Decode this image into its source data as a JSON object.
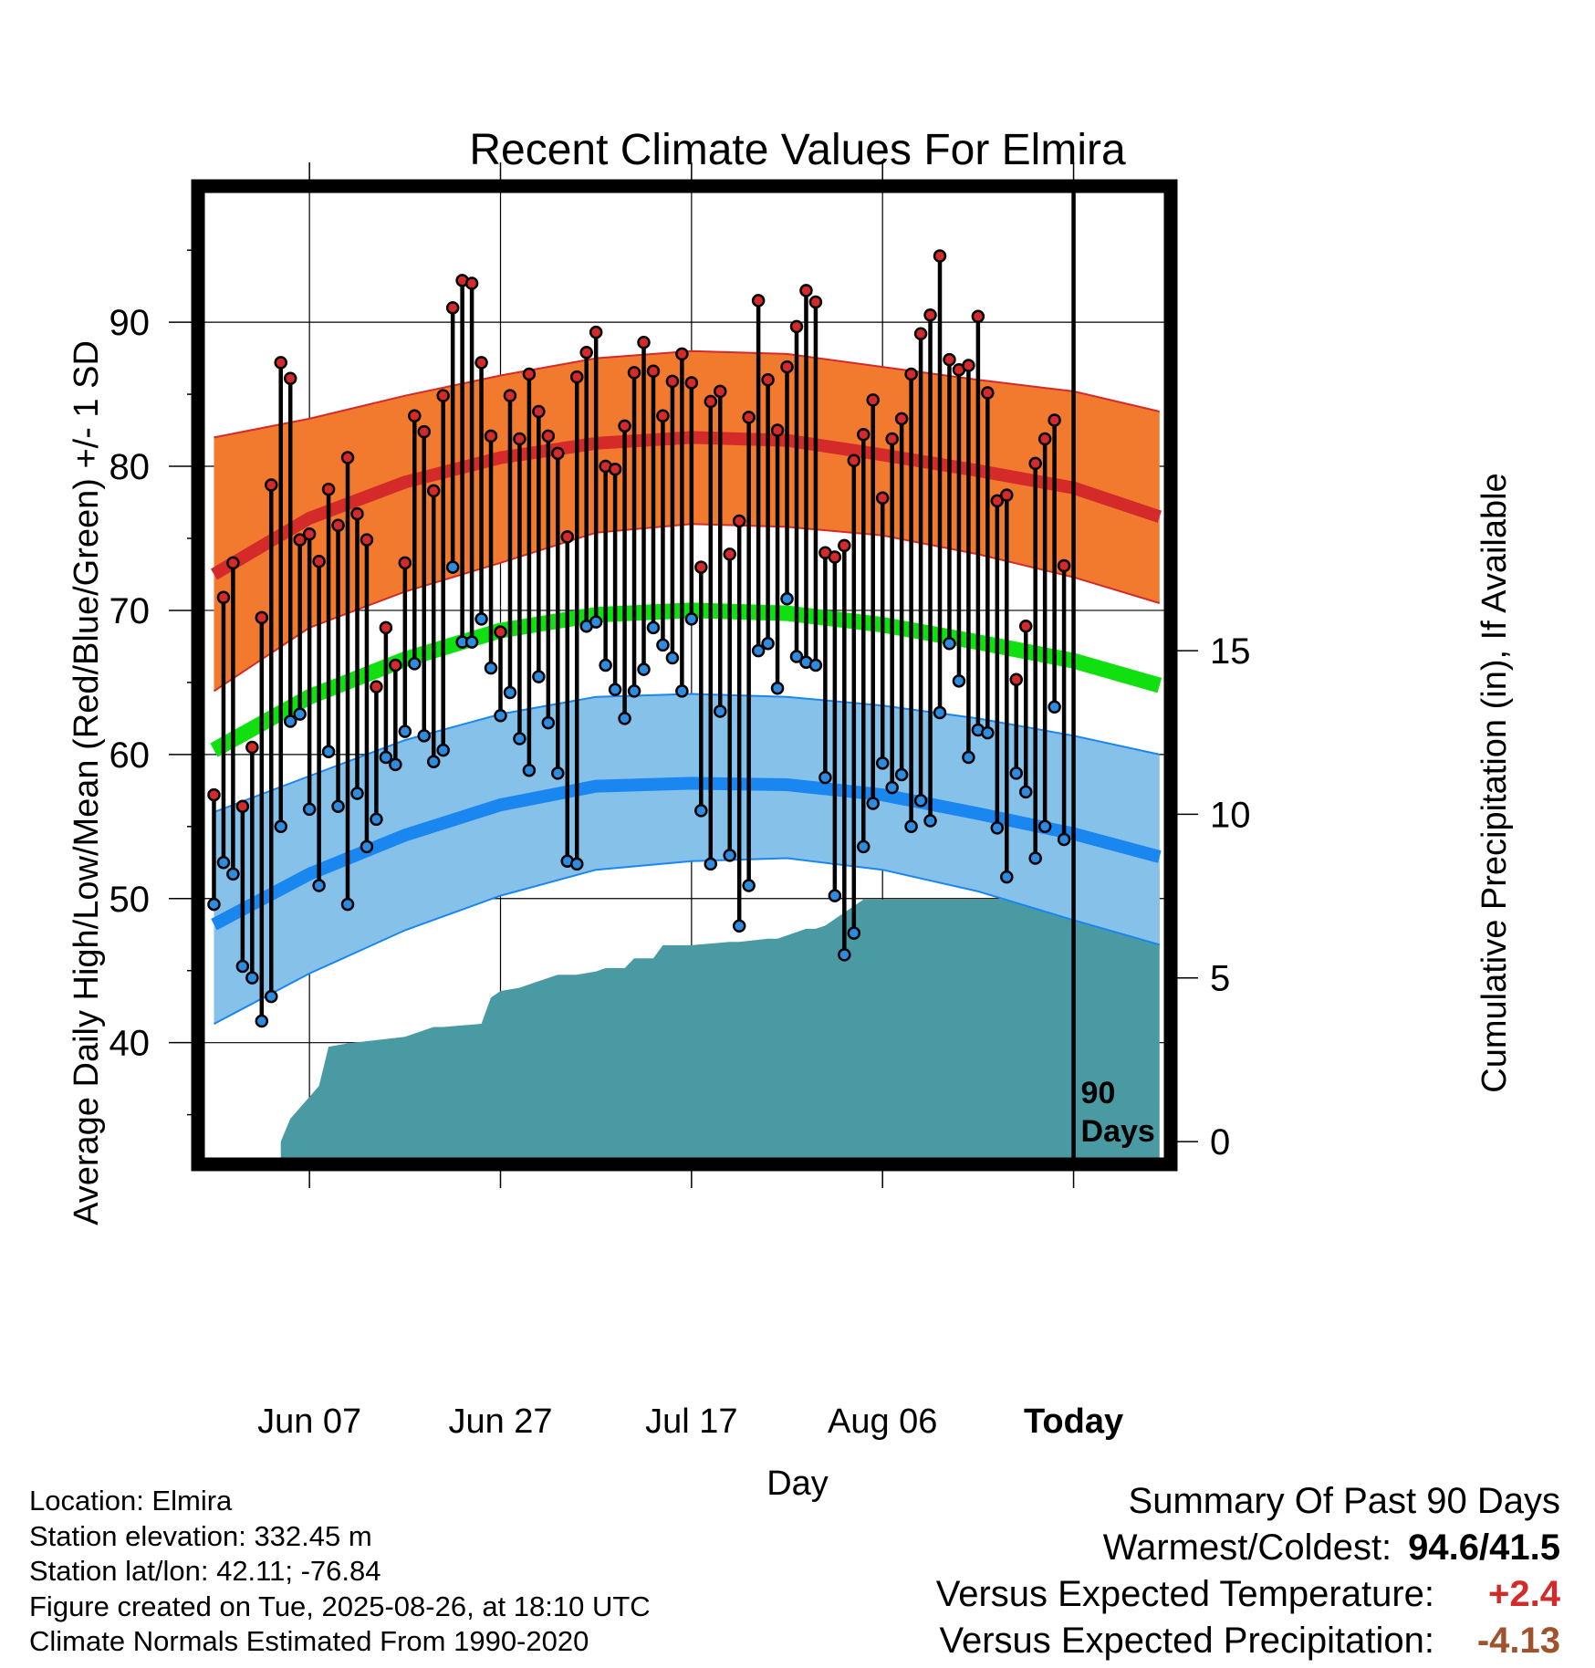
{
  "chart_data": {
    "type": "line",
    "title": "Recent Climate Values For Elmira",
    "xlabel": "Day",
    "ylabel": "Average Daily High/Low/Mean (Red/Blue/Green) +/- 1 SD",
    "y2label": "Cumulative Precipitation (in), If Available",
    "ylim": [
      32,
      99
    ],
    "yticks": [
      40,
      50,
      60,
      70,
      80,
      90
    ],
    "y2lim": [
      -0.5,
      29
    ],
    "y2ticks": [
      0,
      5,
      10,
      15
    ],
    "x_tick_labels": [
      {
        "day": 10,
        "label": "Jun 07"
      },
      {
        "day": 30,
        "label": "Jun 27"
      },
      {
        "day": 50,
        "label": "Jul 17"
      },
      {
        "day": 70,
        "label": "Aug 06"
      },
      {
        "day": 90,
        "label": "Today"
      }
    ],
    "xlim": [
      -1,
      99.5
    ],
    "today_label": [
      "90",
      "Days"
    ],
    "grid": true,
    "colors": {
      "high_band": "#f27a2e",
      "high_mean": "#d42a2a",
      "low_band": "#86c1ea",
      "low_mean": "#1a86f0",
      "mean": "#10e010",
      "precip": "#4a9aa4",
      "high_point": "#d42a2a",
      "low_point": "#2e8ce0"
    },
    "normal_high": {
      "days": [
        0,
        10,
        20,
        30,
        40,
        50,
        60,
        70,
        80,
        90,
        99
      ],
      "mean": [
        72.5,
        76.4,
        78.9,
        80.6,
        81.6,
        82.0,
        81.8,
        80.8,
        79.7,
        78.5,
        76.5
      ],
      "upper": [
        82.0,
        83.3,
        84.9,
        86.3,
        87.5,
        88.0,
        87.8,
        86.9,
        86.0,
        85.2,
        83.8
      ],
      "lower": [
        64.4,
        68.8,
        71.3,
        73.3,
        75.4,
        76.0,
        75.8,
        75.2,
        73.9,
        72.3,
        70.5
      ]
    },
    "normal_low": {
      "days": [
        0,
        10,
        20,
        30,
        40,
        50,
        60,
        70,
        80,
        90,
        99
      ],
      "mean": [
        48.2,
        51.7,
        54.4,
        56.5,
        57.8,
        58.0,
        57.9,
        57.2,
        55.9,
        54.5,
        52.9
      ],
      "upper": [
        56.0,
        58.5,
        61.0,
        62.8,
        64.0,
        64.2,
        64.0,
        63.4,
        62.5,
        61.3,
        60.0
      ],
      "lower": [
        41.3,
        44.8,
        47.8,
        50.2,
        52.0,
        52.6,
        52.8,
        52.0,
        50.5,
        48.5,
        46.8
      ]
    },
    "normal_mean": {
      "days": [
        0,
        10,
        20,
        30,
        40,
        50,
        60,
        70,
        80,
        90,
        99
      ],
      "values": [
        60.3,
        64.0,
        66.6,
        68.6,
        69.7,
        70.0,
        69.8,
        69.0,
        67.8,
        66.5,
        64.8
      ]
    },
    "daily": {
      "days": [
        0,
        1,
        2,
        3,
        4,
        5,
        6,
        7,
        8,
        9,
        10,
        11,
        12,
        13,
        14,
        15,
        16,
        17,
        18,
        19,
        20,
        21,
        22,
        23,
        24,
        25,
        26,
        27,
        28,
        29,
        30,
        31,
        32,
        33,
        34,
        35,
        36,
        37,
        38,
        39,
        40,
        41,
        42,
        43,
        44,
        45,
        46,
        47,
        48,
        49,
        50,
        51,
        52,
        53,
        54,
        55,
        56,
        57,
        58,
        59,
        60,
        61,
        62,
        63,
        64,
        65,
        66,
        67,
        68,
        69,
        70,
        71,
        72,
        73,
        74,
        75,
        76,
        77,
        78,
        79,
        80,
        81,
        82,
        83,
        84,
        85,
        86,
        87,
        88,
        89
      ],
      "high": [
        57.2,
        70.9,
        73.3,
        56.4,
        60.5,
        69.5,
        78.7,
        87.2,
        86.1,
        74.9,
        75.3,
        73.4,
        78.4,
        75.9,
        80.6,
        76.7,
        74.9,
        64.7,
        68.8,
        66.2,
        73.3,
        83.5,
        82.4,
        78.3,
        84.9,
        91.0,
        92.9,
        92.7,
        87.2,
        82.1,
        68.5,
        84.9,
        81.9,
        86.4,
        83.8,
        82.1,
        80.9,
        75.1,
        86.2,
        87.9,
        89.3,
        80.0,
        79.8,
        82.8,
        86.5,
        88.6,
        86.6,
        83.5,
        85.9,
        87.8,
        85.8,
        73.0,
        84.5,
        85.2,
        73.9,
        76.2,
        83.4,
        91.5,
        86.0,
        82.5,
        86.9,
        89.7,
        92.2,
        91.4,
        74.0,
        73.7,
        74.5,
        80.4,
        82.2,
        84.6,
        77.8,
        81.9,
        83.3,
        86.4,
        89.2,
        90.5,
        94.6,
        87.4,
        86.7,
        87.0,
        90.4,
        85.1,
        77.6,
        78.0,
        65.2,
        68.9,
        80.2,
        81.9,
        83.2,
        73.1
      ],
      "low": [
        49.6,
        52.5,
        51.7,
        45.3,
        44.5,
        41.5,
        43.2,
        55.0,
        62.3,
        62.8,
        56.2,
        50.9,
        60.2,
        56.4,
        49.6,
        57.3,
        53.6,
        55.5,
        59.8,
        59.3,
        61.6,
        66.3,
        61.3,
        59.5,
        60.3,
        73.0,
        67.8,
        67.8,
        69.4,
        66.0,
        62.7,
        64.3,
        61.1,
        58.9,
        65.4,
        62.2,
        58.7,
        52.6,
        52.4,
        68.9,
        69.2,
        66.2,
        64.5,
        62.5,
        64.4,
        65.9,
        68.8,
        67.6,
        66.7,
        64.4,
        69.4,
        56.1,
        52.4,
        63.0,
        53.0,
        48.1,
        50.9,
        67.2,
        67.7,
        64.6,
        70.8,
        66.8,
        66.4,
        66.2,
        58.4,
        50.2,
        46.1,
        47.6,
        53.6,
        56.6,
        59.4,
        57.7,
        58.6,
        55.0,
        56.8,
        55.4,
        62.9,
        67.7,
        65.1,
        59.8,
        61.7,
        61.5,
        54.9,
        51.5,
        58.7,
        57.4,
        52.8,
        55.0,
        63.3,
        54.1
      ]
    },
    "precip_cumulative": {
      "days": [
        7,
        8,
        11,
        12,
        14,
        20,
        23,
        24,
        28,
        29,
        30,
        32,
        34,
        36,
        38,
        40,
        41,
        43,
        44,
        46,
        47,
        50,
        54,
        55,
        58,
        59,
        62,
        63,
        64,
        68,
        72,
        80,
        84,
        85,
        87,
        88,
        89,
        90,
        99
      ],
      "values": [
        0.0,
        0.7,
        1.7,
        2.9,
        3.0,
        3.2,
        3.5,
        3.5,
        3.6,
        4.4,
        4.6,
        4.7,
        4.9,
        5.1,
        5.1,
        5.2,
        5.3,
        5.3,
        5.6,
        5.6,
        6.0,
        6.0,
        6.1,
        6.1,
        6.2,
        6.2,
        6.5,
        6.5,
        6.6,
        7.4,
        7.4,
        7.4,
        7.4,
        8.0,
        8.0,
        8.3,
        8.3,
        8.3,
        8.3
      ]
    }
  },
  "footer": {
    "location": "Location: Elmira",
    "elevation": "Station elevation: 332.45 m",
    "latlon": "Station lat/lon: 42.11; -76.84",
    "created": "Figure created on Tue, 2025-08-26, at 18:10 UTC",
    "normals": "Climate Normals Estimated From 1990-2020"
  },
  "summary": {
    "title": "Summary Of Past 90 Days",
    "warmest_coldest_label": "Warmest/Coldest:",
    "warmest_coldest_value": "94.6/41.5",
    "temp_label": "Versus Expected Temperature:",
    "temp_value": "+2.4",
    "temp_color": "#d42a2a",
    "precip_label": "Versus Expected Precipitation:",
    "precip_value": "-4.13",
    "precip_color": "#a0522d"
  }
}
